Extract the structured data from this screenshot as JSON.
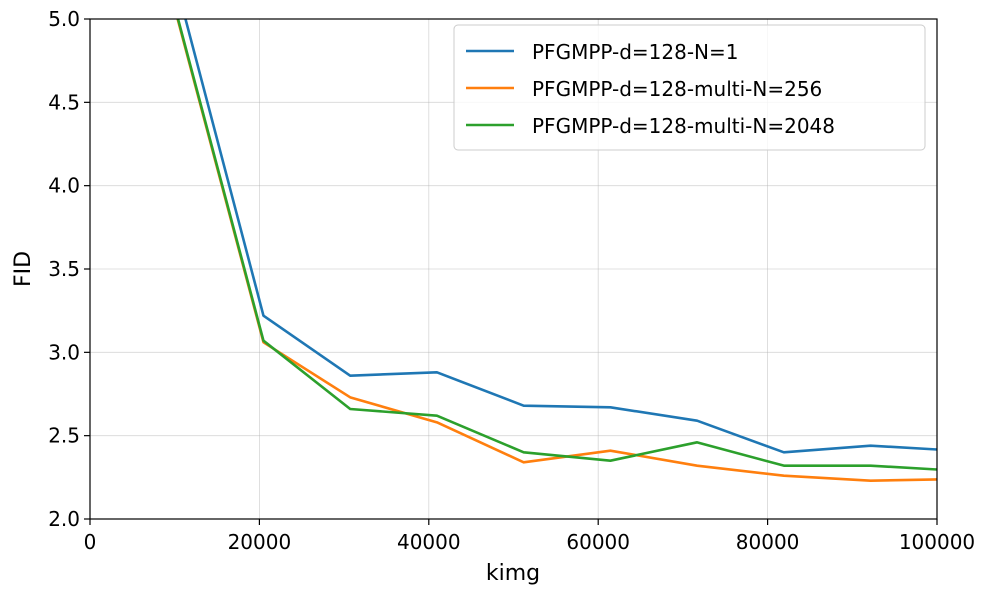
{
  "chart_data": {
    "type": "line",
    "title": "",
    "xlabel": "kimg",
    "ylabel": "FID",
    "xlim": [
      0,
      100000
    ],
    "ylim": [
      2.0,
      5.0
    ],
    "grid": true,
    "legend_position": "top-right",
    "x_ticks": [
      0,
      20000,
      40000,
      60000,
      80000,
      100000
    ],
    "x_tick_labels": [
      "0",
      "20000",
      "40000",
      "60000",
      "80000",
      "100000"
    ],
    "y_ticks": [
      2.0,
      2.5,
      3.0,
      3.5,
      4.0,
      4.5,
      5.0
    ],
    "y_tick_labels": [
      "2.0",
      "2.5",
      "3.0",
      "3.5",
      "4.0",
      "4.5",
      "5.0"
    ],
    "x": [
      10240,
      20480,
      30720,
      40960,
      51200,
      61440,
      71680,
      81920,
      92160,
      102400
    ],
    "series": [
      {
        "name": "PFGMPP-d=128-N=1",
        "color": "#1f77b4",
        "values": [
          5.2,
          3.22,
          2.86,
          2.88,
          2.68,
          2.67,
          2.59,
          2.4,
          2.44,
          2.41
        ]
      },
      {
        "name": "PFGMPP-d=128-multi-N=256",
        "color": "#ff7f0e",
        "values": [
          5.02,
          3.06,
          2.73,
          2.58,
          2.34,
          2.41,
          2.32,
          2.26,
          2.23,
          2.24
        ]
      },
      {
        "name": "PFGMPP-d=128-multi-N=2048",
        "color": "#2ca02c",
        "values": [
          5.03,
          3.07,
          2.66,
          2.62,
          2.4,
          2.35,
          2.46,
          2.32,
          2.32,
          2.29
        ]
      }
    ]
  }
}
